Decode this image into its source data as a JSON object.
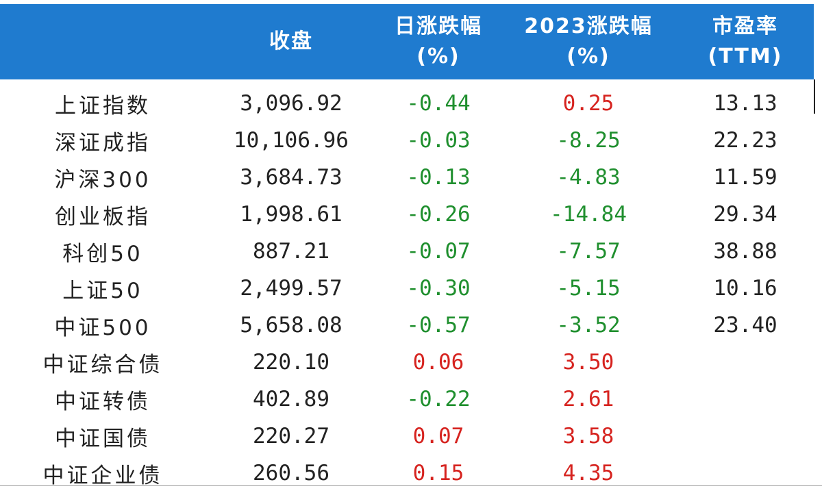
{
  "colors": {
    "header_bg": "#1f7bcf",
    "header_text": "#ffffff",
    "up": "#d6231f",
    "down": "#1f8f2e",
    "text": "#222222"
  },
  "header": {
    "name": "",
    "close": "收盘",
    "day_change_line1": "日涨跌幅",
    "day_change_line2": "(%)",
    "ytd_line1": "2023涨跌幅",
    "ytd_line2": "(%)",
    "pe_line1": "市盈率",
    "pe_line2": "(TTM)"
  },
  "rows": [
    {
      "name": "上证指数",
      "close": "3,096.92",
      "day": "-0.44",
      "ytd": "0.25",
      "pe": "13.13"
    },
    {
      "name": "深证成指",
      "close": "10,106.96",
      "day": "-0.03",
      "ytd": "-8.25",
      "pe": "22.23"
    },
    {
      "name": "沪深300",
      "close": "3,684.73",
      "day": "-0.13",
      "ytd": "-4.83",
      "pe": "11.59"
    },
    {
      "name": "创业板指",
      "close": "1,998.61",
      "day": "-0.26",
      "ytd": "-14.84",
      "pe": "29.34"
    },
    {
      "name": "科创50",
      "close": "887.21",
      "day": "-0.07",
      "ytd": "-7.57",
      "pe": "38.88"
    },
    {
      "name": "上证50",
      "close": "2,499.57",
      "day": "-0.30",
      "ytd": "-5.15",
      "pe": "10.16"
    },
    {
      "name": "中证500",
      "close": "5,658.08",
      "day": "-0.57",
      "ytd": "-3.52",
      "pe": "23.40"
    },
    {
      "name": "中证综合债",
      "close": "220.10",
      "day": "0.06",
      "ytd": "3.50",
      "pe": ""
    },
    {
      "name": "中证转债",
      "close": "402.89",
      "day": "-0.22",
      "ytd": "2.61",
      "pe": ""
    },
    {
      "name": "中证国债",
      "close": "220.27",
      "day": "0.07",
      "ytd": "3.58",
      "pe": ""
    },
    {
      "name": "中证企业债",
      "close": "260.56",
      "day": "0.15",
      "ytd": "4.35",
      "pe": ""
    }
  ]
}
